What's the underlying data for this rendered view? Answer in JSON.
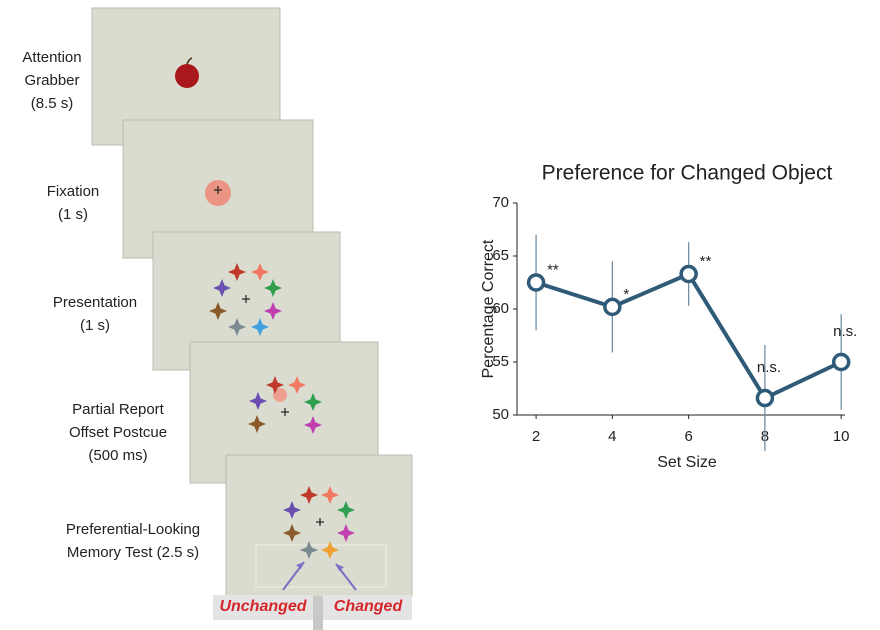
{
  "procedure": [
    {
      "lines": [
        "Attention",
        "Grabber",
        "(8.5 s)"
      ]
    },
    {
      "lines": [
        "Fixation",
        "(1 s)"
      ]
    },
    {
      "lines": [
        "Presentation",
        "(1 s)"
      ]
    },
    {
      "lines": [
        "Partial Report",
        "Offset Postcue",
        "(500 ms)"
      ]
    },
    {
      "lines": [
        "Preferential-Looking",
        "Memory Test (2.5 s)"
      ]
    }
  ],
  "test_labels": [
    "Unchanged",
    "Changed"
  ],
  "chart_data": {
    "type": "line",
    "title": "Preference for Changed Object",
    "xlabel": "Set Size",
    "ylabel": "Percentage Correct",
    "x": [
      2,
      4,
      6,
      8,
      10
    ],
    "values": [
      62.5,
      60.2,
      63.3,
      51.6,
      55.0
    ],
    "errors": [
      4.5,
      4.3,
      3.0,
      5.0,
      4.5
    ],
    "annotations": [
      "**",
      "*",
      "**",
      "n.s.",
      "n.s."
    ],
    "color": "#2f5b78",
    "xlim": [
      1.5,
      10.1
    ],
    "xticks": [
      2,
      4,
      6,
      8,
      10
    ],
    "ylim": [
      50,
      70
    ],
    "yticks": [
      50,
      55,
      60,
      65,
      70
    ]
  }
}
